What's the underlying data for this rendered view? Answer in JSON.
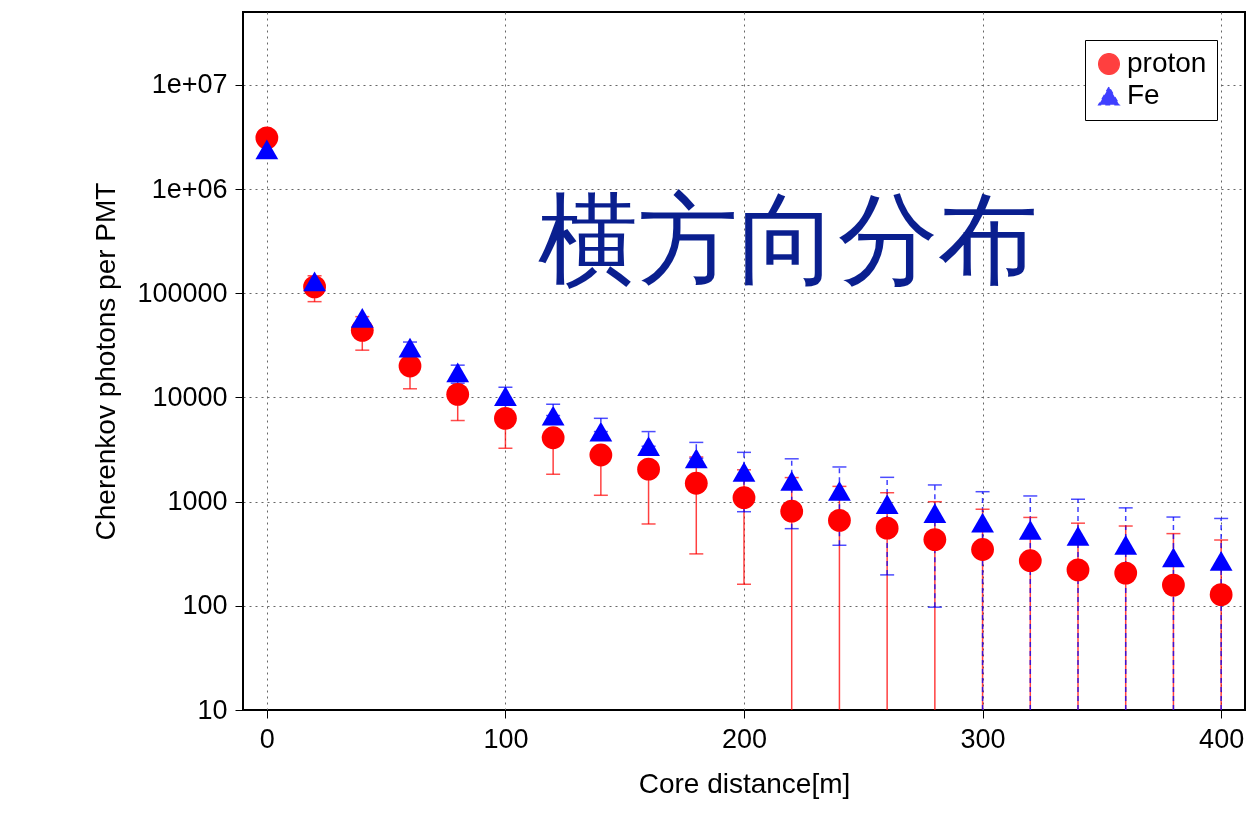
{
  "chart_data": {
    "type": "scatter",
    "xlabel": "Core distance[m]",
    "ylabel": "Cherenkov photons per PMT",
    "annotations": [
      "横方向分布"
    ],
    "x": [
      0,
      20,
      40,
      60,
      80,
      100,
      120,
      140,
      160,
      180,
      200,
      220,
      240,
      260,
      280,
      300,
      320,
      340,
      360,
      380,
      400
    ],
    "xlim": [
      -10,
      410
    ],
    "xticks": [
      0,
      100,
      200,
      300,
      400
    ],
    "ylim": [
      10,
      50000000
    ],
    "yticks": [
      10,
      100,
      1000,
      10000,
      100000,
      {
        "value": 1000000,
        "label": "1e+06"
      },
      {
        "value": 10000000,
        "label": "1e+07"
      }
    ],
    "log": true,
    "grid": true,
    "legend": "top right",
    "series": [
      {
        "name": "proton",
        "color": "#ff0000",
        "marker": "circle",
        "values": [
          3100000,
          115000,
          44000,
          20000,
          10700,
          6300,
          4100,
          2800,
          2050,
          1500,
          1090,
          810,
          660,
          556,
          432,
          347,
          271,
          221,
          206,
          158,
          128
        ],
        "errors": [
          null,
          [
            83000,
            147000
          ],
          [
            28400,
            59600
          ],
          [
            12100,
            20000
          ],
          [
            6000,
            10700
          ],
          [
            3250,
            6300
          ],
          [
            1830,
            4100
          ],
          [
            1150,
            2800
          ],
          [
            610,
            2050
          ],
          [
            315,
            2680
          ],
          [
            161,
            2020
          ],
          [
            10,
            1700
          ],
          [
            10,
            1400
          ],
          [
            10,
            1217
          ],
          [
            10,
            998
          ],
          [
            10,
            845
          ],
          [
            10,
            705
          ],
          [
            10,
            621
          ],
          [
            10,
            583
          ],
          [
            10,
            493
          ],
          [
            10,
            428
          ]
        ]
      },
      {
        "name": "Fe",
        "color": "#0000ff",
        "marker": "triangle",
        "values": [
          2400000,
          130000,
          58000,
          30000,
          17400,
          10300,
          6700,
          4700,
          3400,
          2600,
          1930,
          1580,
          1270,
          945,
          775,
          627,
          535,
          468,
          384,
          291,
          270
        ],
        "errors": [
          null,
          null,
          null,
          [
            25000,
            34000
          ],
          [
            13700,
            20400
          ],
          [
            7500,
            12500
          ],
          [
            6700,
            8600
          ],
          [
            4700,
            6300
          ],
          [
            3400,
            4700
          ],
          [
            2600,
            3700
          ],
          [
            800,
            2970
          ],
          [
            550,
            2575
          ],
          [
            381,
            2150
          ],
          [
            198,
            1710
          ],
          [
            97,
            1445
          ],
          [
            10,
            1245
          ],
          [
            10,
            1133
          ],
          [
            10,
            1054
          ],
          [
            10,
            871
          ],
          [
            10,
            711
          ],
          [
            10,
            689
          ]
        ]
      }
    ]
  }
}
